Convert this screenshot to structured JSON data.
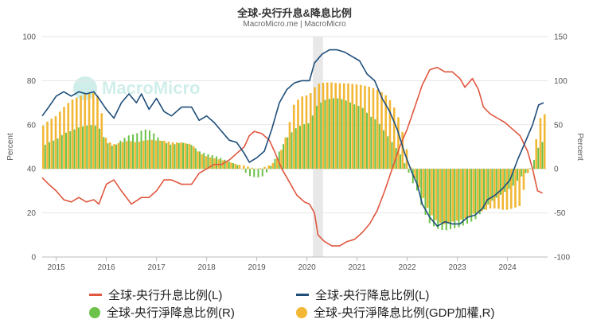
{
  "chart_data": {
    "type": "line+bar",
    "title": "全球-央行升息&降息比例",
    "subtitle": "MacroMicro.me | MacroMicro",
    "watermark": "MacroMicro",
    "left_axis": {
      "label": "Percent",
      "range": [
        0,
        100
      ],
      "ticks": [
        0,
        20,
        40,
        60,
        80,
        100
      ]
    },
    "right_axis": {
      "label": "Percent",
      "range": [
        -100,
        150
      ],
      "ticks": [
        -100,
        -50,
        0,
        50,
        100,
        150
      ]
    },
    "x_range": [
      2014.72,
      2024.8
    ],
    "x_ticks": [
      "2015",
      "2016",
      "2017",
      "2018",
      "2019",
      "2020",
      "2021",
      "2022",
      "2023",
      "2024"
    ],
    "shaded_period": [
      2020.12,
      2020.32
    ],
    "colors": {
      "hike": "#e0573f",
      "cut": "#1f4e79",
      "net_cut": "#6cc24a",
      "net_cut_gdp": "#f2b735",
      "grid": "#e6e6e6",
      "shade": "#d9d9d9"
    },
    "series": [
      {
        "name": "全球-央行升息比例(L)",
        "axis": "left",
        "kind": "line",
        "points": [
          [
            2014.72,
            36
          ],
          [
            2014.85,
            33
          ],
          [
            2015.0,
            30
          ],
          [
            2015.15,
            26
          ],
          [
            2015.3,
            25
          ],
          [
            2015.45,
            27
          ],
          [
            2015.6,
            25
          ],
          [
            2015.75,
            26
          ],
          [
            2015.85,
            24
          ],
          [
            2016.0,
            33
          ],
          [
            2016.15,
            35
          ],
          [
            2016.3,
            30
          ],
          [
            2016.5,
            24
          ],
          [
            2016.7,
            27
          ],
          [
            2016.85,
            27
          ],
          [
            2017.0,
            30
          ],
          [
            2017.15,
            35
          ],
          [
            2017.3,
            35
          ],
          [
            2017.5,
            33
          ],
          [
            2017.7,
            33
          ],
          [
            2017.85,
            38
          ],
          [
            2018.0,
            40
          ],
          [
            2018.15,
            42
          ],
          [
            2018.3,
            42
          ],
          [
            2018.45,
            44
          ],
          [
            2018.6,
            47
          ],
          [
            2018.75,
            50
          ],
          [
            2018.85,
            55
          ],
          [
            2018.95,
            57
          ],
          [
            2019.1,
            56
          ],
          [
            2019.25,
            53
          ],
          [
            2019.35,
            48
          ],
          [
            2019.5,
            40
          ],
          [
            2019.65,
            34
          ],
          [
            2019.8,
            28
          ],
          [
            2019.95,
            25
          ],
          [
            2020.05,
            24
          ],
          [
            2020.15,
            20
          ],
          [
            2020.22,
            10
          ],
          [
            2020.35,
            7
          ],
          [
            2020.5,
            5
          ],
          [
            2020.65,
            5
          ],
          [
            2020.8,
            7
          ],
          [
            2020.95,
            8
          ],
          [
            2021.1,
            11
          ],
          [
            2021.25,
            15
          ],
          [
            2021.4,
            21
          ],
          [
            2021.55,
            30
          ],
          [
            2021.7,
            40
          ],
          [
            2021.85,
            50
          ],
          [
            2022.0,
            58
          ],
          [
            2022.15,
            68
          ],
          [
            2022.3,
            78
          ],
          [
            2022.45,
            85
          ],
          [
            2022.6,
            86
          ],
          [
            2022.75,
            84
          ],
          [
            2022.9,
            84
          ],
          [
            2023.05,
            81
          ],
          [
            2023.15,
            77
          ],
          [
            2023.3,
            81
          ],
          [
            2023.42,
            76
          ],
          [
            2023.52,
            68
          ],
          [
            2023.65,
            65
          ],
          [
            2023.8,
            63
          ],
          [
            2023.95,
            61
          ],
          [
            2024.1,
            58
          ],
          [
            2024.25,
            55
          ],
          [
            2024.4,
            48
          ],
          [
            2024.5,
            40
          ],
          [
            2024.6,
            30
          ],
          [
            2024.7,
            29
          ]
        ]
      },
      {
        "name": "全球-央行降息比例(L)",
        "axis": "left",
        "kind": "line",
        "points": [
          [
            2014.72,
            64
          ],
          [
            2014.85,
            68
          ],
          [
            2015.0,
            73
          ],
          [
            2015.15,
            75
          ],
          [
            2015.3,
            73
          ],
          [
            2015.45,
            75
          ],
          [
            2015.6,
            74
          ],
          [
            2015.75,
            75
          ],
          [
            2015.85,
            72
          ],
          [
            2016.0,
            67
          ],
          [
            2016.15,
            63
          ],
          [
            2016.3,
            70
          ],
          [
            2016.45,
            74
          ],
          [
            2016.6,
            70
          ],
          [
            2016.7,
            74
          ],
          [
            2016.85,
            67
          ],
          [
            2017.0,
            72
          ],
          [
            2017.15,
            66
          ],
          [
            2017.3,
            64
          ],
          [
            2017.5,
            68
          ],
          [
            2017.7,
            68
          ],
          [
            2017.85,
            62
          ],
          [
            2018.0,
            64
          ],
          [
            2018.15,
            61
          ],
          [
            2018.3,
            57
          ],
          [
            2018.45,
            53
          ],
          [
            2018.6,
            52
          ],
          [
            2018.75,
            47
          ],
          [
            2018.85,
            43
          ],
          [
            2019.0,
            45
          ],
          [
            2019.15,
            48
          ],
          [
            2019.3,
            58
          ],
          [
            2019.45,
            70
          ],
          [
            2019.6,
            76
          ],
          [
            2019.75,
            79
          ],
          [
            2019.9,
            80
          ],
          [
            2020.05,
            80
          ],
          [
            2020.15,
            88
          ],
          [
            2020.3,
            92
          ],
          [
            2020.45,
            94
          ],
          [
            2020.6,
            94
          ],
          [
            2020.75,
            93
          ],
          [
            2020.9,
            91
          ],
          [
            2021.05,
            89
          ],
          [
            2021.2,
            83
          ],
          [
            2021.35,
            80
          ],
          [
            2021.5,
            72
          ],
          [
            2021.65,
            66
          ],
          [
            2021.8,
            58
          ],
          [
            2021.95,
            47
          ],
          [
            2022.1,
            38
          ],
          [
            2022.2,
            33
          ],
          [
            2022.3,
            24
          ],
          [
            2022.45,
            18
          ],
          [
            2022.6,
            14
          ],
          [
            2022.75,
            16
          ],
          [
            2022.9,
            15
          ],
          [
            2023.05,
            15
          ],
          [
            2023.2,
            18
          ],
          [
            2023.35,
            19
          ],
          [
            2023.5,
            22
          ],
          [
            2023.6,
            26
          ],
          [
            2023.75,
            28
          ],
          [
            2023.9,
            31
          ],
          [
            2024.05,
            35
          ],
          [
            2024.2,
            44
          ],
          [
            2024.35,
            52
          ],
          [
            2024.5,
            60
          ],
          [
            2024.62,
            69
          ],
          [
            2024.72,
            70
          ]
        ]
      },
      {
        "name": "全球-央行淨降息比例(R)",
        "axis": "right",
        "kind": "bar",
        "points": [
          [
            2014.72,
            25
          ],
          [
            2014.85,
            30
          ],
          [
            2015.0,
            33
          ],
          [
            2015.15,
            40
          ],
          [
            2015.3,
            43
          ],
          [
            2015.45,
            47
          ],
          [
            2015.6,
            49
          ],
          [
            2015.75,
            50
          ],
          [
            2015.85,
            47
          ],
          [
            2016.0,
            30
          ],
          [
            2016.15,
            25
          ],
          [
            2016.3,
            33
          ],
          [
            2016.45,
            38
          ],
          [
            2016.6,
            40
          ],
          [
            2016.75,
            45
          ],
          [
            2016.9,
            43
          ],
          [
            2017.0,
            37
          ],
          [
            2017.15,
            30
          ],
          [
            2017.3,
            27
          ],
          [
            2017.5,
            30
          ],
          [
            2017.7,
            27
          ],
          [
            2017.85,
            20
          ],
          [
            2018.0,
            17
          ],
          [
            2018.15,
            15
          ],
          [
            2018.3,
            12
          ],
          [
            2018.45,
            8
          ],
          [
            2018.6,
            5
          ],
          [
            2018.75,
            -3
          ],
          [
            2018.85,
            -8
          ],
          [
            2019.0,
            -10
          ],
          [
            2019.15,
            -8
          ],
          [
            2019.3,
            5
          ],
          [
            2019.45,
            20
          ],
          [
            2019.6,
            35
          ],
          [
            2019.75,
            45
          ],
          [
            2019.9,
            50
          ],
          [
            2020.05,
            52
          ],
          [
            2020.2,
            72
          ],
          [
            2020.35,
            78
          ],
          [
            2020.5,
            80
          ],
          [
            2020.65,
            80
          ],
          [
            2020.8,
            77
          ],
          [
            2020.95,
            73
          ],
          [
            2021.1,
            70
          ],
          [
            2021.25,
            60
          ],
          [
            2021.4,
            55
          ],
          [
            2021.55,
            42
          ],
          [
            2021.7,
            30
          ],
          [
            2021.85,
            18
          ],
          [
            2022.0,
            0
          ],
          [
            2022.1,
            -15
          ],
          [
            2022.2,
            -25
          ],
          [
            2022.3,
            -45
          ],
          [
            2022.45,
            -62
          ],
          [
            2022.6,
            -68
          ],
          [
            2022.75,
            -70
          ],
          [
            2022.9,
            -68
          ],
          [
            2023.05,
            -66
          ],
          [
            2023.2,
            -62
          ],
          [
            2023.35,
            -58
          ],
          [
            2023.5,
            -48
          ],
          [
            2023.65,
            -38
          ],
          [
            2023.8,
            -32
          ],
          [
            2023.95,
            -26
          ],
          [
            2024.1,
            -20
          ],
          [
            2024.25,
            -10
          ],
          [
            2024.4,
            -3
          ],
          [
            2024.5,
            5
          ],
          [
            2024.62,
            25
          ],
          [
            2024.72,
            32
          ]
        ]
      },
      {
        "name": "全球-央行淨降息比例(GDP加權,R)",
        "axis": "right",
        "kind": "bar",
        "points": [
          [
            2014.72,
            48
          ],
          [
            2014.85,
            55
          ],
          [
            2015.0,
            60
          ],
          [
            2015.15,
            70
          ],
          [
            2015.3,
            78
          ],
          [
            2015.45,
            82
          ],
          [
            2015.6,
            85
          ],
          [
            2015.75,
            86
          ],
          [
            2015.85,
            82
          ],
          [
            2016.0,
            32
          ],
          [
            2016.15,
            28
          ],
          [
            2016.3,
            30
          ],
          [
            2016.45,
            32
          ],
          [
            2016.6,
            30
          ],
          [
            2016.75,
            32
          ],
          [
            2016.9,
            33
          ],
          [
            2017.0,
            32
          ],
          [
            2017.15,
            32
          ],
          [
            2017.3,
            30
          ],
          [
            2017.5,
            30
          ],
          [
            2017.7,
            28
          ],
          [
            2017.85,
            18
          ],
          [
            2018.0,
            14
          ],
          [
            2018.15,
            12
          ],
          [
            2018.3,
            10
          ],
          [
            2018.45,
            8
          ],
          [
            2018.6,
            5
          ],
          [
            2018.75,
            4
          ],
          [
            2018.85,
            2
          ],
          [
            2019.0,
            0
          ],
          [
            2019.15,
            2
          ],
          [
            2019.3,
            5
          ],
          [
            2019.45,
            15
          ],
          [
            2019.6,
            40
          ],
          [
            2019.75,
            75
          ],
          [
            2019.9,
            82
          ],
          [
            2020.05,
            84
          ],
          [
            2020.2,
            96
          ],
          [
            2020.35,
            98
          ],
          [
            2020.5,
            98
          ],
          [
            2020.65,
            97
          ],
          [
            2020.8,
            97
          ],
          [
            2020.95,
            96
          ],
          [
            2021.1,
            95
          ],
          [
            2021.25,
            93
          ],
          [
            2021.4,
            90
          ],
          [
            2021.55,
            85
          ],
          [
            2021.7,
            75
          ],
          [
            2021.85,
            55
          ],
          [
            2022.0,
            20
          ],
          [
            2022.1,
            -5
          ],
          [
            2022.2,
            -15
          ],
          [
            2022.3,
            -30
          ],
          [
            2022.45,
            -50
          ],
          [
            2022.6,
            -60
          ],
          [
            2022.75,
            -63
          ],
          [
            2022.9,
            -60
          ],
          [
            2023.05,
            -58
          ],
          [
            2023.2,
            -55
          ],
          [
            2023.35,
            -50
          ],
          [
            2023.5,
            -48
          ],
          [
            2023.65,
            -45
          ],
          [
            2023.8,
            -45
          ],
          [
            2023.95,
            -47
          ],
          [
            2024.1,
            -45
          ],
          [
            2024.25,
            -42
          ],
          [
            2024.4,
            -5
          ],
          [
            2024.5,
            0
          ],
          [
            2024.62,
            55
          ],
          [
            2024.72,
            62
          ]
        ]
      }
    ]
  },
  "legend": [
    {
      "label": "全球-央行升息比例(L)",
      "color": "#e0573f",
      "shape": "line"
    },
    {
      "label": "全球-央行降息比例(L)",
      "color": "#1f4e79",
      "shape": "line"
    },
    {
      "label": "全球-央行淨降息比例(R)",
      "color": "#6cc24a",
      "shape": "dot"
    },
    {
      "label": "全球-央行淨降息比例(GDP加權,R)",
      "color": "#f2b735",
      "shape": "dot"
    }
  ]
}
